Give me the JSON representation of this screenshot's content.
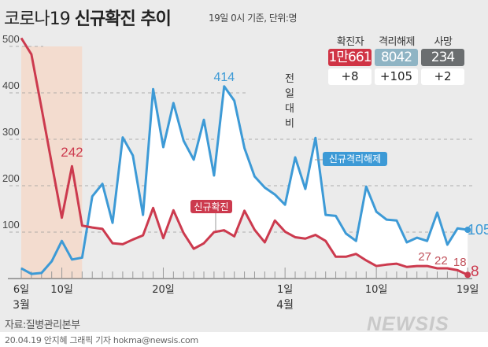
{
  "header": {
    "title_plain": "코로나19",
    "title_bold": "신규확진 추이",
    "subtitle": "19일 0시 기준, 단위:명"
  },
  "stats": {
    "headers": [
      "확진자",
      "격리해제",
      "사망"
    ],
    "totals": [
      "1만661",
      "8042",
      "234"
    ],
    "row_label": "전일대비",
    "changes": [
      "+8",
      "+105",
      "+2"
    ],
    "colors": [
      "#d03445",
      "#8fb4c4",
      "#6b6e70"
    ]
  },
  "chart_data": {
    "type": "line",
    "x_start": "3월 6일",
    "x_end": "4월 19일",
    "x_ticks": [
      {
        "day": 0,
        "label": "6일",
        "month": "3월"
      },
      {
        "day": 4,
        "label": "10일"
      },
      {
        "day": 14,
        "label": "20일"
      },
      {
        "day": 26,
        "label": "1일",
        "month": "4월"
      },
      {
        "day": 35,
        "label": "10일"
      },
      {
        "day": 44,
        "label": "19일"
      }
    ],
    "y_ticks": [
      100,
      200,
      300,
      400,
      500
    ],
    "ylim": [
      0,
      520
    ],
    "grid": true,
    "highlight_range_days": [
      0,
      6
    ],
    "series": [
      {
        "name": "신규확진",
        "color": "#cc3a4e",
        "values": [
          518,
          483,
          367,
          248,
          131,
          242,
          114,
          110,
          107,
          76,
          74,
          84,
          93,
          152,
          87,
          147,
          98,
          64,
          76,
          100,
          104,
          91,
          146,
          105,
          78,
          125,
          101,
          89,
          86,
          94,
          81,
          47,
          47,
          53,
          39,
          27,
          30,
          32,
          25,
          27,
          27,
          22,
          22,
          18,
          8
        ],
        "labels": [
          {
            "day": 5,
            "text": "242"
          },
          {
            "day": 40,
            "text": "27"
          },
          {
            "day": 42,
            "text": "22"
          },
          {
            "day": 43,
            "text": "18"
          },
          {
            "day": 44,
            "text": "8"
          }
        ]
      },
      {
        "name": "신규격리해제",
        "color": "#3d9ad6",
        "values": [
          22,
          10,
          12,
          37,
          81,
          41,
          45,
          177,
          204,
          120,
          304,
          265,
          137,
          408,
          283,
          378,
          297,
          256,
          342,
          222,
          414,
          383,
          281,
          220,
          196,
          181,
          159,
          261,
          193,
          303,
          137,
          135,
          97,
          81,
          198,
          144,
          127,
          125,
          78,
          88,
          81,
          142,
          73,
          108,
          105
        ],
        "labels": [
          {
            "day": 20,
            "text": "414"
          },
          {
            "day": 44,
            "text": "105"
          }
        ]
      }
    ]
  },
  "footer": {
    "source": "자료:질병관리본부",
    "credit": "20.04.19 안지혜 그래픽 기자 hokma@newsis.com",
    "logo": "NEWSIS"
  }
}
